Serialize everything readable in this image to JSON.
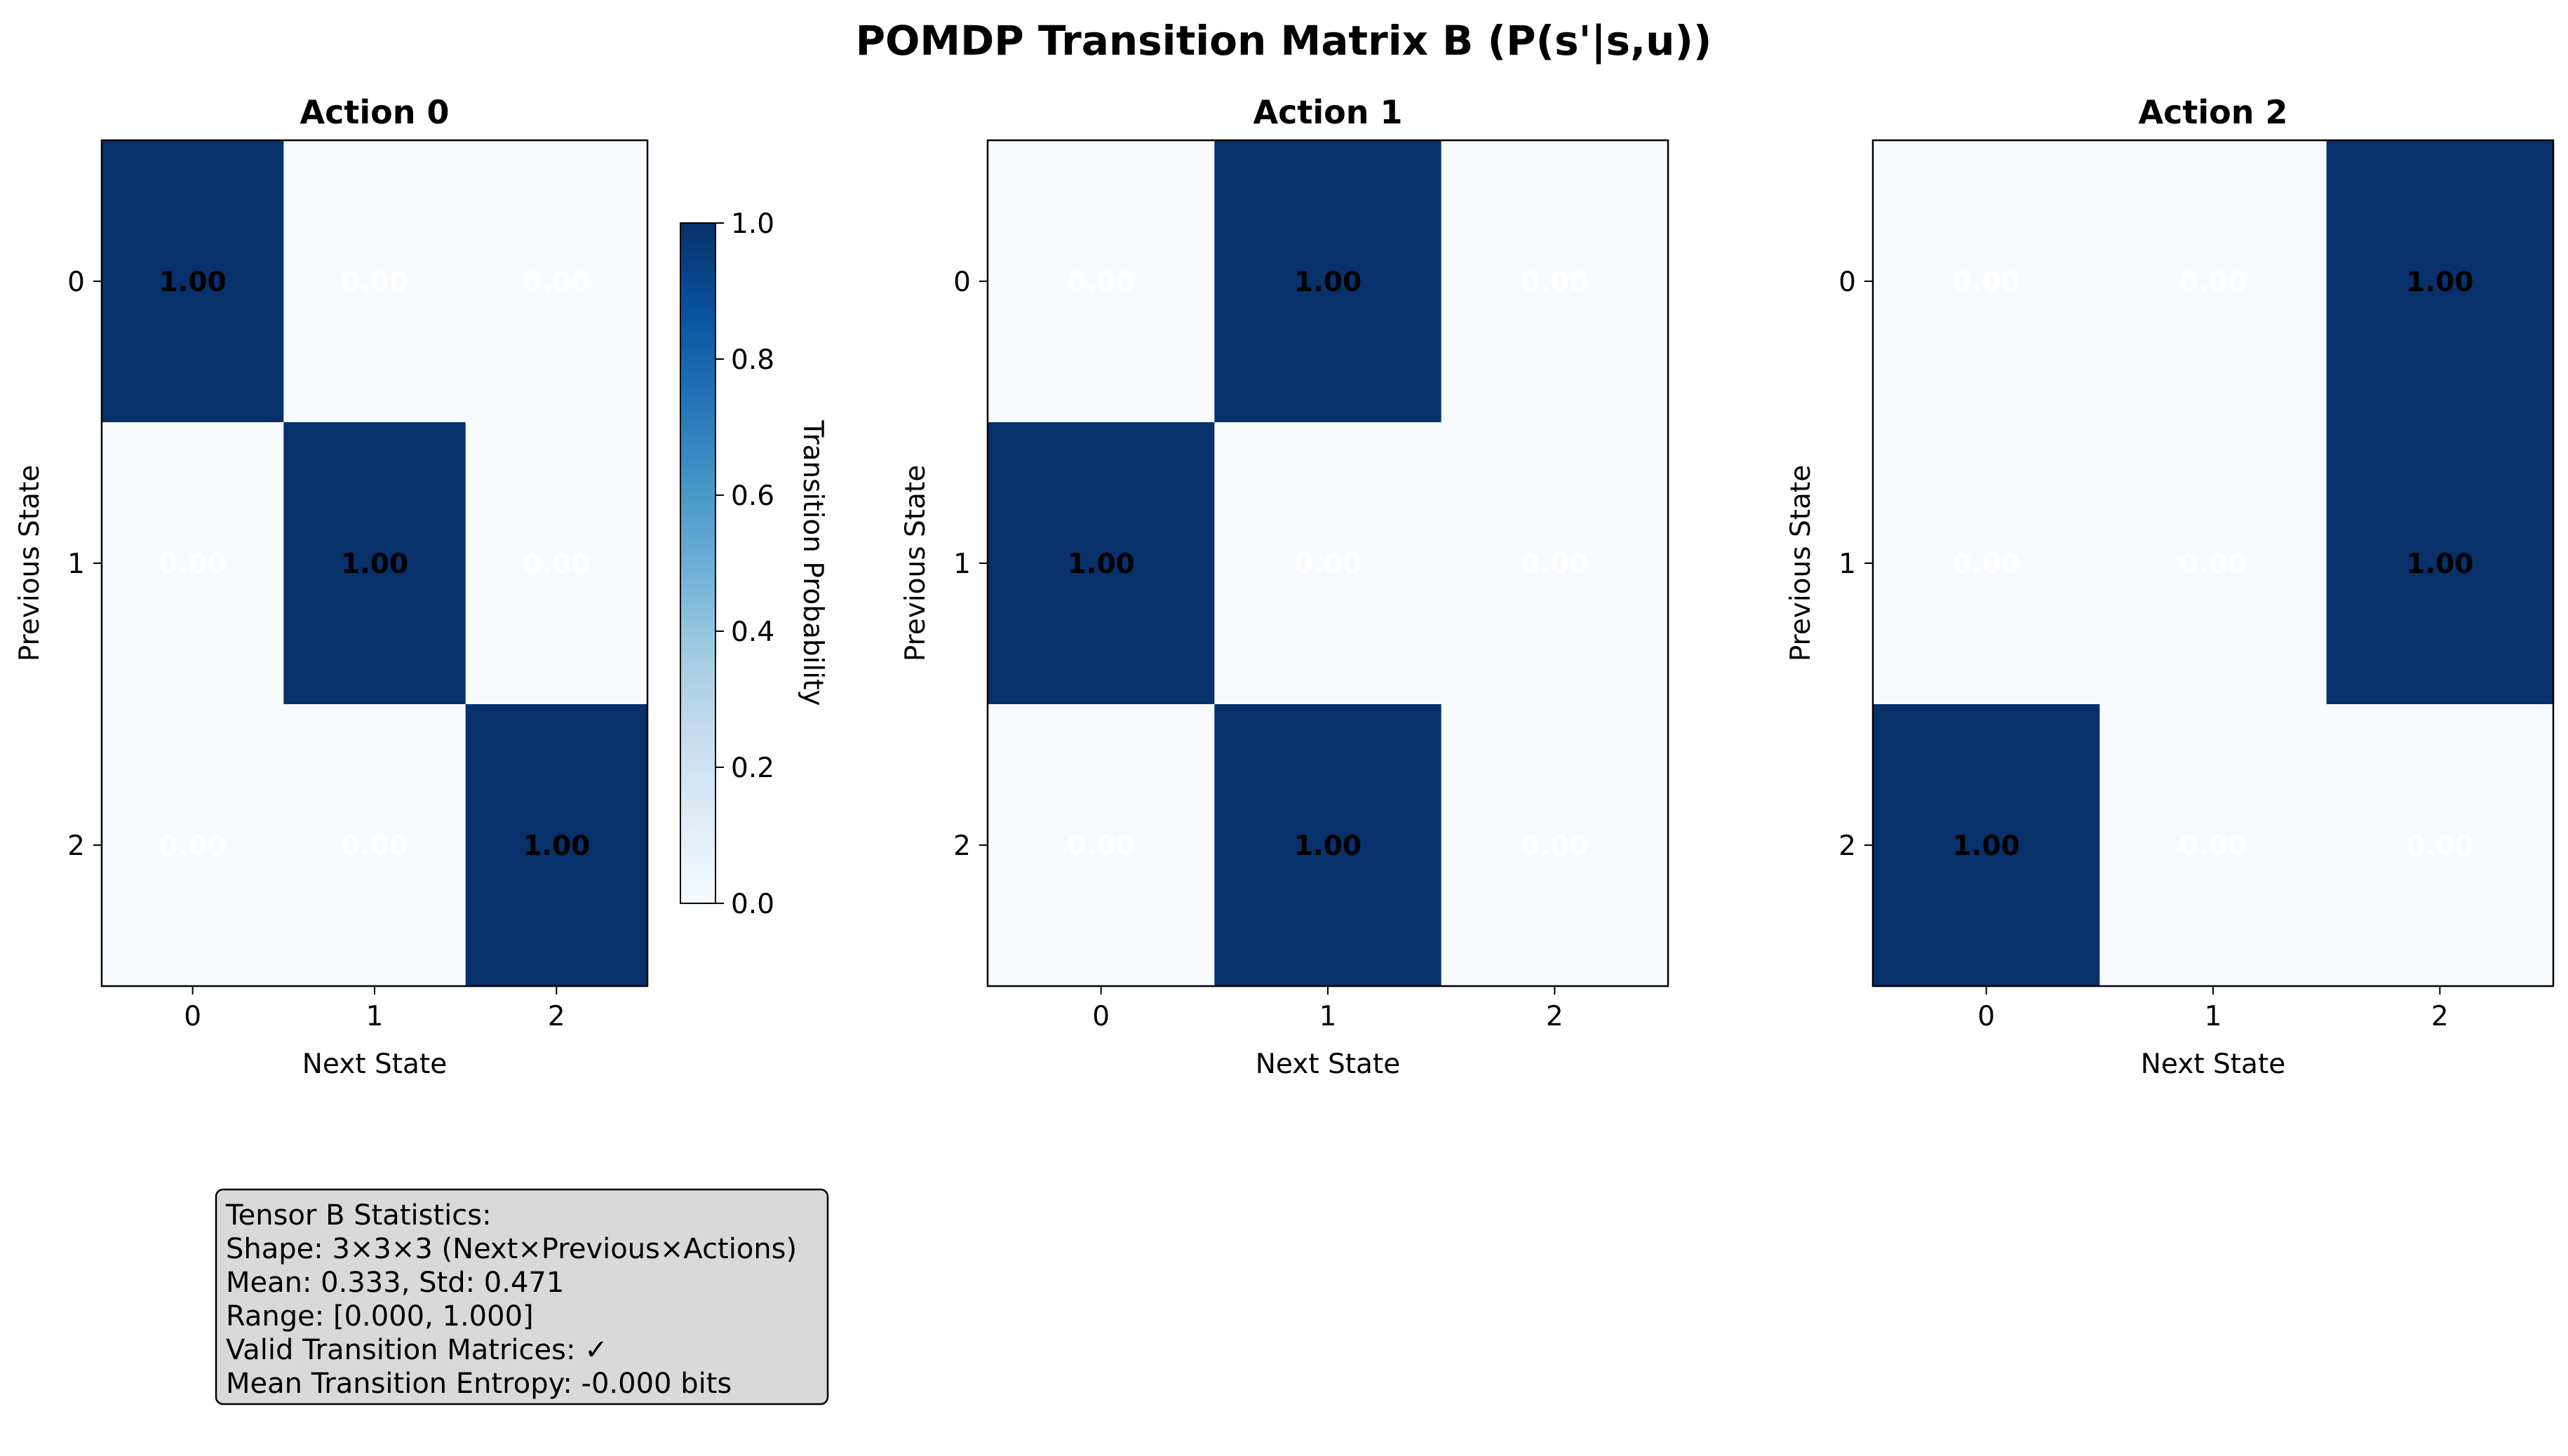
{
  "chart_data": {
    "type": "heatmap",
    "title": "POMDP Transition Matrix B (P(s'|s,u))",
    "colormap": {
      "name": "Blues",
      "low_color": "#f7fbff",
      "high_color": "#08306b"
    },
    "colorbar": {
      "label": "Transition Probability",
      "range": [
        0,
        1
      ],
      "ticks": [
        "0.0",
        "0.2",
        "0.4",
        "0.6",
        "0.8",
        "1.0"
      ]
    },
    "panels": [
      {
        "title": "Action 0",
        "xlabel": "Next State",
        "ylabel": "Previous State",
        "x_ticks": [
          "0",
          "1",
          "2"
        ],
        "y_ticks": [
          "0",
          "1",
          "2"
        ],
        "values": [
          [
            1,
            0,
            0
          ],
          [
            0,
            1,
            0
          ],
          [
            0,
            0,
            1
          ]
        ],
        "labels": [
          [
            "1.00",
            "0.00",
            "0.00"
          ],
          [
            "0.00",
            "1.00",
            "0.00"
          ],
          [
            "0.00",
            "0.00",
            "1.00"
          ]
        ]
      },
      {
        "title": "Action 1",
        "xlabel": "Next State",
        "ylabel": "Previous State",
        "x_ticks": [
          "0",
          "1",
          "2"
        ],
        "y_ticks": [
          "0",
          "1",
          "2"
        ],
        "values": [
          [
            0,
            1,
            0
          ],
          [
            1,
            0,
            0
          ],
          [
            0,
            1,
            0
          ]
        ],
        "labels": [
          [
            "0.00",
            "1.00",
            "0.00"
          ],
          [
            "1.00",
            "0.00",
            "0.00"
          ],
          [
            "0.00",
            "1.00",
            "0.00"
          ]
        ]
      },
      {
        "title": "Action 2",
        "xlabel": "Next State",
        "ylabel": "Previous State",
        "x_ticks": [
          "0",
          "1",
          "2"
        ],
        "y_ticks": [
          "0",
          "1",
          "2"
        ],
        "values": [
          [
            0,
            0,
            1
          ],
          [
            0,
            0,
            1
          ],
          [
            1,
            0,
            0
          ]
        ],
        "labels": [
          [
            "0.00",
            "0.00",
            "1.00"
          ],
          [
            "0.00",
            "0.00",
            "1.00"
          ],
          [
            "1.00",
            "0.00",
            "0.00"
          ]
        ]
      }
    ],
    "stats_box": [
      "Tensor B Statistics:",
      "Shape: 3×3×3 (Next×Previous×Actions)",
      "Mean: 0.333, Std: 0.471",
      "Range: [0.000, 1.000]",
      "Valid Transition Matrices: ✓",
      "Mean Transition Entropy: -0.000 bits"
    ]
  }
}
